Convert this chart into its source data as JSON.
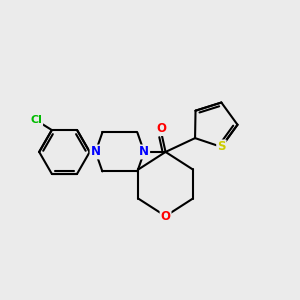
{
  "background_color": "#ebebeb",
  "bond_color": "#000000",
  "atom_colors": {
    "N": "#0000ff",
    "O": "#ff0000",
    "S": "#cccc00",
    "Cl": "#00bb00",
    "C": "#000000"
  },
  "figsize": [
    3.0,
    3.0
  ],
  "dpi": 100
}
